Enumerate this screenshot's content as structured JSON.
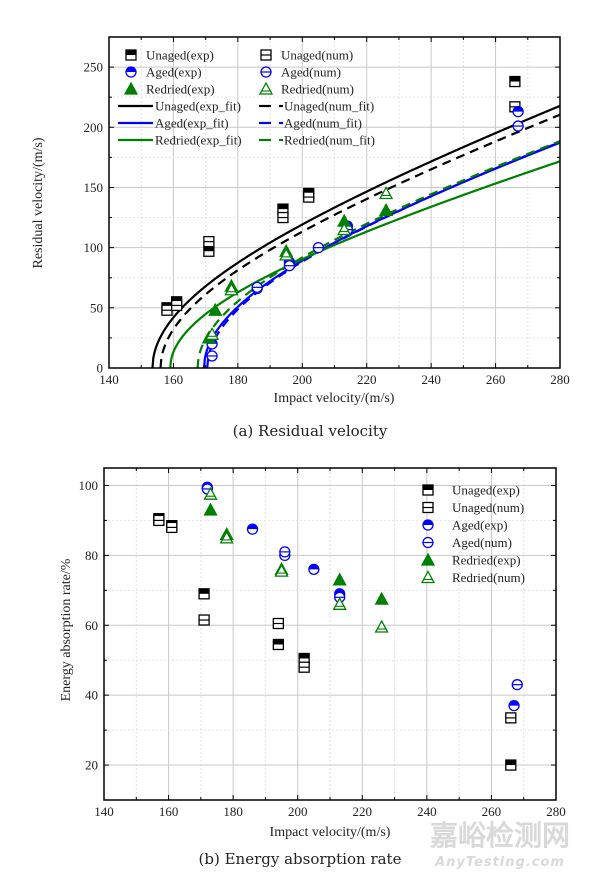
{
  "chart_data": [
    {
      "type": "scatter",
      "id": "residual",
      "caption": "(a) Residual velocity",
      "xlabel": "Impact velocity/(m/s)",
      "ylabel": "Residual velocity/(m/s)",
      "xlim": [
        140,
        280
      ],
      "ylim": [
        0,
        275
      ],
      "xticks": [
        140,
        160,
        180,
        200,
        220,
        240,
        260,
        280
      ],
      "yticks": [
        0,
        50,
        100,
        150,
        200,
        250
      ],
      "grid": true,
      "legend_position": "top-left",
      "series": [
        {
          "name": "Unaged(exp)",
          "marker": "square-half",
          "color": "#000000",
          "x": [
            158,
            161,
            171,
            194,
            202,
            266
          ],
          "y": [
            50,
            55,
            97,
            132,
            145,
            238
          ]
        },
        {
          "name": "Unaged(num)",
          "marker": "square-open",
          "color": "#000000",
          "x": [
            158,
            161,
            171,
            194,
            202,
            266
          ],
          "y": [
            48,
            52,
            105,
            125,
            142,
            217
          ]
        },
        {
          "name": "Aged(exp)",
          "marker": "circle-half",
          "color": "#0000ff",
          "x": [
            172,
            186,
            196,
            214,
            267
          ],
          "y": [
            20,
            66,
            88,
            118,
            213
          ]
        },
        {
          "name": "Aged(num)",
          "marker": "circle-open",
          "color": "#0000ff",
          "x": [
            172,
            186,
            196,
            205,
            214,
            267
          ],
          "y": [
            10,
            67,
            85,
            100,
            115,
            201
          ]
        },
        {
          "name": "Redried(exp)",
          "marker": "triangle-filled",
          "color": "#008000",
          "x": [
            171,
            173,
            178,
            195,
            213,
            226
          ],
          "y": [
            25,
            48,
            68,
            97,
            122,
            131
          ]
        },
        {
          "name": "Redried(num)",
          "marker": "triangle-open",
          "color": "#008000",
          "x": [
            172,
            178,
            195,
            213,
            226
          ],
          "y": [
            28,
            65,
            94,
            115,
            145
          ]
        }
      ],
      "fits": [
        {
          "name": "Unaged(exp_fit)",
          "style": "solid",
          "color": "#000000",
          "v0": 153.5,
          "a": 0.93
        },
        {
          "name": "Unaged(num_fit)",
          "style": "dashed",
          "color": "#000000",
          "v0": 156,
          "a": 0.905
        },
        {
          "name": "Aged(exp_fit)",
          "style": "solid",
          "color": "#0000ff",
          "v0": 169.5,
          "a": 0.84
        },
        {
          "name": "Aged(num_fit)",
          "style": "dashed",
          "color": "#0000ff",
          "v0": 170.5,
          "a": 0.845
        },
        {
          "name": "Redried(exp_fit)",
          "style": "solid",
          "color": "#008000",
          "v0": 159,
          "a": 0.745
        },
        {
          "name": "Redried(num_fit)",
          "style": "dashed",
          "color": "#008000",
          "v0": 167.5,
          "a": 0.84
        }
      ]
    },
    {
      "type": "scatter",
      "id": "energy",
      "caption": "(b) Energy absorption rate",
      "xlabel": "Impact velocity/(m/s)",
      "ylabel": "Energy absorption rate/%",
      "xlim": [
        140,
        280
      ],
      "ylim": [
        10,
        105
      ],
      "xticks": [
        140,
        160,
        180,
        200,
        220,
        240,
        260,
        280
      ],
      "yticks": [
        20,
        40,
        60,
        80,
        100
      ],
      "grid": true,
      "legend_position": "top-right",
      "series": [
        {
          "name": "Unaged(exp)",
          "marker": "square-half",
          "color": "#000000",
          "x": [
            157,
            161,
            171,
            194,
            202,
            266
          ],
          "y": [
            90.5,
            88.5,
            69,
            54.5,
            50.5,
            20
          ]
        },
        {
          "name": "Unaged(num)",
          "marker": "square-open",
          "color": "#000000",
          "x": [
            157,
            161,
            171,
            194,
            202,
            266
          ],
          "y": [
            90,
            88,
            61.5,
            60.5,
            48,
            33.5
          ]
        },
        {
          "name": "Aged(exp)",
          "marker": "circle-half",
          "color": "#0000ff",
          "x": [
            172,
            186,
            196,
            205,
            213,
            267
          ],
          "y": [
            99.5,
            87.5,
            80,
            76,
            69,
            37
          ]
        },
        {
          "name": "Aged(num)",
          "marker": "circle-open",
          "color": "#0000ff",
          "x": [
            172,
            196,
            213,
            268
          ],
          "y": [
            99,
            81,
            68,
            43
          ]
        },
        {
          "name": "Redried(exp)",
          "marker": "triangle-filled",
          "color": "#008000",
          "x": [
            173,
            178,
            195,
            213,
            226
          ],
          "y": [
            93,
            86,
            76,
            73,
            67.5
          ]
        },
        {
          "name": "Redried(num)",
          "marker": "triangle-open",
          "color": "#008000",
          "x": [
            173,
            178,
            195,
            213,
            226
          ],
          "y": [
            97.5,
            85,
            75.5,
            66,
            59.5
          ]
        }
      ]
    }
  ],
  "watermark": {
    "cn": "嘉峪检测网",
    "en": "AnyTesting.com"
  }
}
